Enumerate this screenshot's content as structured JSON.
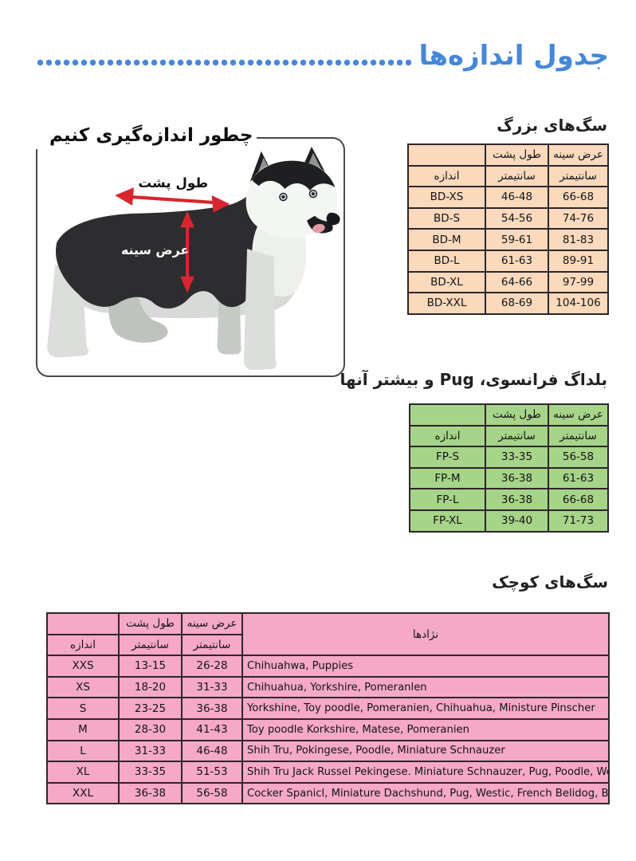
{
  "page": {
    "title": "جدول اندازه‌ها"
  },
  "measure_box": {
    "title": "چطور اندازه‌گیری کنیم",
    "back_length_label": "طول پشت",
    "chest_width_label": "عرض سینه"
  },
  "table_headers": {
    "size": "اندازه",
    "back_length": "طول پشت",
    "chest_width": "عرض سینه",
    "centimeter": "سانتیمتر",
    "breeds": "نژادها"
  },
  "big_dogs": {
    "heading": "سگ‌های بزرگ",
    "rows": [
      {
        "size": "BD-XS",
        "back": "46-48",
        "chest": "66-68"
      },
      {
        "size": "BD-S",
        "back": "54-56",
        "chest": "74-76"
      },
      {
        "size": "BD-M",
        "back": "59-61",
        "chest": "81-83"
      },
      {
        "size": "BD-L",
        "back": "61-63",
        "chest": "89-91"
      },
      {
        "size": "BD-XL",
        "back": "64-66",
        "chest": "97-99"
      },
      {
        "size": "BD-XXL",
        "back": "68-69",
        "chest": "104-106"
      }
    ]
  },
  "french_bulldog_pug": {
    "heading": "بلداگ فرانسوی، Pug و بیشتر آنها",
    "rows": [
      {
        "size": "FP-S",
        "back": "33-35",
        "chest": "56-58"
      },
      {
        "size": "FP-M",
        "back": "36-38",
        "chest": "61-63"
      },
      {
        "size": "FP-L",
        "back": "36-38",
        "chest": "66-68"
      },
      {
        "size": "FP-XL",
        "back": "39-40",
        "chest": "71-73"
      }
    ]
  },
  "small_dogs": {
    "heading": "سگ‌های کوچک",
    "rows": [
      {
        "size": "XXS",
        "back": "13-15",
        "chest": "26-28",
        "breeds": "Chihuahwa, Puppies"
      },
      {
        "size": "XS",
        "back": "18-20",
        "chest": "31-33",
        "breeds": "Chihuahua, Yorkshire, Pomeranlen"
      },
      {
        "size": "S",
        "back": "23-25",
        "chest": "36-38",
        "breeds": "Yorkshine, Toy poodle, Pomeranien, Chihuahua, Ministure Pinscher"
      },
      {
        "size": "M",
        "back": "28-30",
        "chest": "41-43",
        "breeds": "Toy poodle Korkshire, Matese, Pomeranien"
      },
      {
        "size": "L",
        "back": "31-33",
        "chest": "46-48",
        "breeds": "Shih Tru, Pokingese, Poodle, Miniature Schnauzer"
      },
      {
        "size": "XL",
        "back": "33-35",
        "chest": "51-53",
        "breeds": "Shih Tru Jack Russel Pekingese. Miniature Schnauzer, Pug, Poodle, Westle"
      },
      {
        "size": "XXL",
        "back": "36-38",
        "chest": "56-58",
        "breeds": "Cocker Spanicl, Miniature Dachshund, Pug, Westic, French Belidog, Beagle"
      }
    ]
  },
  "colors": {
    "accent_blue": "#4587d8",
    "big_dogs_bg": "#fad9bd",
    "french_bg": "#a6d489",
    "small_bg": "#f5a9c6",
    "arrow_red": "#d8252e"
  }
}
